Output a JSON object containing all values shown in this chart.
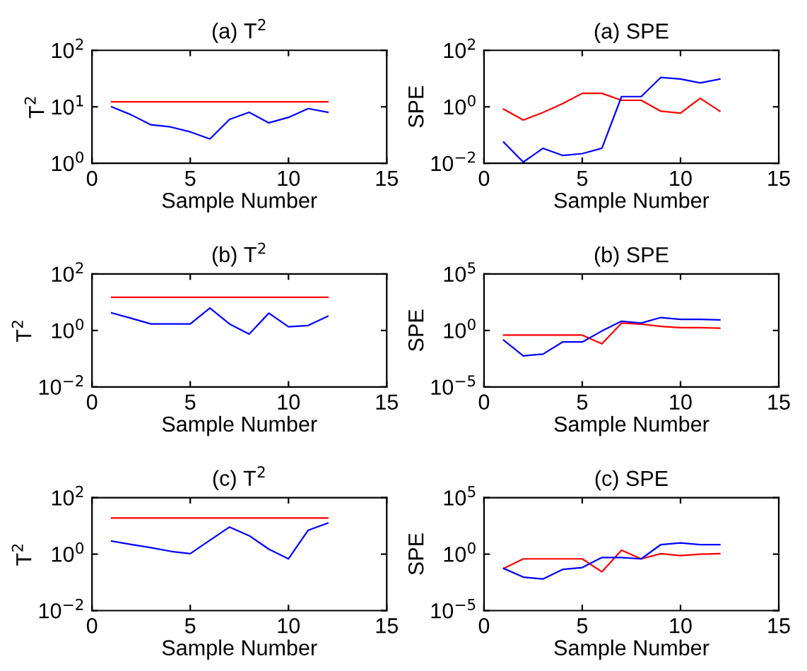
{
  "chart_data": [
    {
      "type": "line",
      "title": "(a) T$^{2}$",
      "xlabel": "Sample Number",
      "ylabel": "T$^{2}$",
      "log": "y",
      "xlim": [
        0,
        15
      ],
      "xticks": [
        0,
        5,
        10,
        15
      ],
      "ylim": [
        1,
        100
      ],
      "yticks": [
        {
          "value": 1,
          "label": "10$^{0}$"
        },
        {
          "value": 10,
          "label": "10$^{1}$"
        },
        {
          "value": 100,
          "label": "10$^{2}$"
        }
      ],
      "x": [
        1,
        2,
        3,
        4,
        5,
        6,
        7,
        8,
        9,
        10,
        11,
        12
      ],
      "series": [
        {
          "color": "#ff0000",
          "values": [
            12.3,
            12.3,
            12.3,
            12.3,
            12.3,
            12.3,
            12.3,
            12.3,
            12.3,
            12.3,
            12.3,
            12.3
          ]
        },
        {
          "color": "#0000ff",
          "values": [
            10,
            7.2,
            4.8,
            4.4,
            3.6,
            2.7,
            6,
            8,
            5.2,
            6.5,
            9.3,
            8
          ]
        }
      ]
    },
    {
      "type": "line",
      "title": "(a) SPE",
      "xlabel": "Sample Number",
      "ylabel": "SPE",
      "log": "y",
      "xlim": [
        0,
        15
      ],
      "xticks": [
        0,
        5,
        10,
        15
      ],
      "ylim": [
        0.01,
        100
      ],
      "yticks": [
        {
          "value": 0.01,
          "label": "10$^{−2}$"
        },
        {
          "value": 1,
          "label": "10$^{0}$"
        },
        {
          "value": 100,
          "label": "10$^{2}$"
        }
      ],
      "x": [
        1,
        2,
        3,
        4,
        5,
        6,
        7,
        8,
        9,
        10,
        11,
        12
      ],
      "series": [
        {
          "color": "#ff0000",
          "values": [
            0.83,
            0.34,
            0.63,
            1.3,
            3,
            3,
            1.7,
            1.7,
            0.7,
            0.6,
            2,
            0.7
          ]
        },
        {
          "color": "#0000ff",
          "values": [
            0.056,
            0.011,
            0.034,
            0.019,
            0.022,
            0.034,
            2.3,
            2.3,
            11,
            9.6,
            7,
            9.6
          ]
        }
      ]
    },
    {
      "type": "line",
      "title": "(b) T$^{2}$",
      "xlabel": "Sample Number",
      "ylabel": "T$^{2}$",
      "log": "y",
      "xlim": [
        0,
        15
      ],
      "xticks": [
        0,
        5,
        10,
        15
      ],
      "ylim": [
        0.01,
        100
      ],
      "yticks": [
        {
          "value": 0.01,
          "label": "10$^{−2}$"
        },
        {
          "value": 1,
          "label": "10$^{0}$"
        },
        {
          "value": 100,
          "label": "10$^{2}$"
        }
      ],
      "x": [
        1,
        2,
        3,
        4,
        5,
        6,
        7,
        8,
        9,
        10,
        11,
        12
      ],
      "series": [
        {
          "color": "#ff0000",
          "values": [
            15,
            15,
            15,
            15,
            15,
            15,
            15,
            15,
            15,
            15,
            15,
            15
          ]
        },
        {
          "color": "#0000ff",
          "values": [
            4.2,
            2.7,
            1.7,
            1.7,
            1.7,
            6.2,
            1.7,
            0.74,
            4.1,
            1.35,
            1.5,
            3.2
          ]
        }
      ]
    },
    {
      "type": "line",
      "title": "(b) SPE",
      "xlabel": "Sample Number",
      "ylabel": "SPE",
      "log": "y",
      "xlim": [
        0,
        15
      ],
      "xticks": [
        0,
        5,
        10,
        15
      ],
      "ylim": [
        1e-05,
        100000
      ],
      "yticks": [
        {
          "value": 1e-05,
          "label": "10$^{−5}$"
        },
        {
          "value": 1,
          "label": "10$^{0}$"
        },
        {
          "value": 100000,
          "label": "10$^{5}$"
        }
      ],
      "x": [
        1,
        2,
        3,
        4,
        5,
        6,
        7,
        8,
        9,
        10,
        11,
        12
      ],
      "series": [
        {
          "color": "#ff0000",
          "values": [
            0.39,
            0.39,
            0.39,
            0.39,
            0.39,
            0.065,
            4.5,
            3.7,
            2.3,
            1.8,
            1.8,
            1.6
          ]
        },
        {
          "color": "#0000ff",
          "values": [
            0.14,
            0.0056,
            0.0081,
            0.095,
            0.095,
            0.9,
            6.6,
            4.5,
            14,
            9.6,
            9.6,
            8.7
          ]
        }
      ]
    },
    {
      "type": "line",
      "title": "(c) T$^{2}$",
      "xlabel": "Sample Number",
      "ylabel": "T$^{2}$",
      "log": "y",
      "xlim": [
        0,
        15
      ],
      "xticks": [
        0,
        5,
        10,
        15
      ],
      "ylim": [
        0.01,
        100
      ],
      "yticks": [
        {
          "value": 0.01,
          "label": "10$^{−2}$"
        },
        {
          "value": 1,
          "label": "10$^{0}$"
        },
        {
          "value": 100,
          "label": "10$^{2}$"
        }
      ],
      "x": [
        1,
        2,
        3,
        4,
        5,
        6,
        7,
        8,
        9,
        10,
        11,
        12
      ],
      "series": [
        {
          "color": "#ff0000",
          "values": [
            19,
            19,
            19,
            19,
            19,
            19,
            19,
            19,
            19,
            19,
            19,
            19
          ]
        },
        {
          "color": "#0000ff",
          "values": [
            2.9,
            2.2,
            1.7,
            1.26,
            1.04,
            3.1,
            9.1,
            4.5,
            1.5,
            0.68,
            7,
            12.5
          ]
        }
      ]
    },
    {
      "type": "line",
      "title": "(c) SPE",
      "xlabel": "Sample Number",
      "ylabel": "SPE",
      "log": "y",
      "xlim": [
        0,
        15
      ],
      "xticks": [
        0,
        5,
        10,
        15
      ],
      "ylim": [
        1e-05,
        100000
      ],
      "yticks": [
        {
          "value": 1e-05,
          "label": "10$^{−5}$"
        },
        {
          "value": 1,
          "label": "10$^{0}$"
        },
        {
          "value": 100000,
          "label": "10$^{5}$"
        }
      ],
      "x": [
        1,
        2,
        3,
        4,
        5,
        6,
        7,
        8,
        9,
        10,
        11,
        12
      ],
      "series": [
        {
          "color": "#ff0000",
          "values": [
            0.054,
            0.38,
            0.38,
            0.38,
            0.38,
            0.027,
            2.2,
            0.38,
            1.1,
            0.75,
            1,
            1.1
          ]
        },
        {
          "color": "#0000ff",
          "values": [
            0.054,
            0.0093,
            0.0063,
            0.044,
            0.065,
            0.5,
            0.5,
            0.38,
            7,
            10,
            7,
            7
          ]
        }
      ]
    }
  ]
}
